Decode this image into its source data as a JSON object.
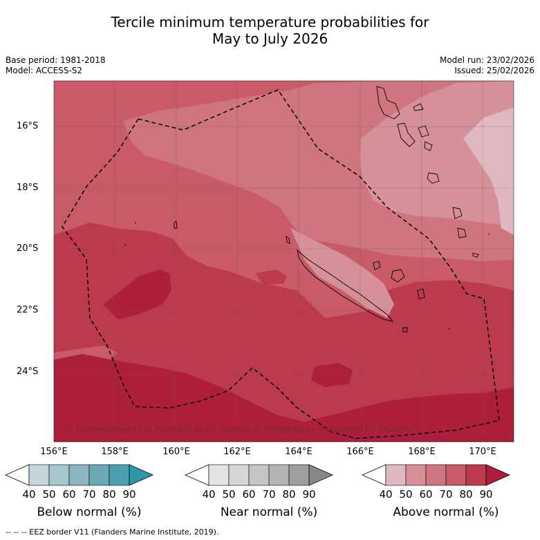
{
  "title_line1": "Tercile minimum temperature probabilities for",
  "title_line2": "May to July 2026",
  "meta_left": {
    "base_period": "Base period: 1981-2018",
    "model": "Model: ACCESS-S2"
  },
  "meta_right": {
    "model_run": "Model run: 23/02/2026",
    "issued": "Issued: 25/02/2026"
  },
  "axes": {
    "lat_labels": [
      "16°S",
      "18°S",
      "20°S",
      "22°S",
      "24°S"
    ],
    "lon_labels": [
      "156°E",
      "158°E",
      "160°E",
      "162°E",
      "164°E",
      "166°E",
      "168°E",
      "170°E"
    ]
  },
  "copyright": "© Commonwealth of Australia 2026, Bureau of Meteorology, supported by COSPPac",
  "legends": {
    "ticks": [
      "40",
      "50",
      "60",
      "70",
      "80",
      "90"
    ],
    "below": {
      "title": "Below normal (%)",
      "colors": [
        "#c2d6dc",
        "#a5c6cc",
        "#88b7c1",
        "#6aa8b5",
        "#4b9faf",
        "#2f97ab"
      ]
    },
    "near": {
      "title": "Near normal (%)",
      "colors": [
        "#e3e3e3",
        "#d6d6d6",
        "#c4c4c4",
        "#b3b3b3",
        "#9e9e9e",
        "#888888"
      ]
    },
    "above": {
      "title": "Above normal (%)",
      "colors": [
        "#dfb9bf",
        "#d69099",
        "#ce7580",
        "#c85b67",
        "#bc3a4d",
        "#ad1f3b"
      ]
    }
  },
  "footnote": "--  --  -- EEZ border V11 (Flanders Marine Institute, 2019).",
  "chart_data": {
    "type": "heatmap",
    "title": "Tercile minimum temperature probabilities for May to July 2026",
    "variable": "minimum temperature",
    "period": "May to July 2026",
    "lon_range": [
      155.9,
      171.0
    ],
    "lat_range": [
      -25.9,
      -14.6
    ],
    "dominant_category": "Above normal",
    "zones": [
      {
        "category": "Above normal",
        "probability_band": "80-90",
        "area": "southern and central-west part of domain"
      },
      {
        "category": "Above normal",
        "probability_band": "70-80",
        "area": "northwest and central band"
      },
      {
        "category": "Above normal",
        "probability_band": "60-70",
        "area": "central-north band"
      },
      {
        "category": "Above normal",
        "probability_band": "50-60",
        "area": "northeast near Vanuatu"
      },
      {
        "category": "Above normal",
        "probability_band": "40-50",
        "area": "far northeast"
      }
    ],
    "eez_border": "New Caledonia EEZ (dashed)"
  }
}
